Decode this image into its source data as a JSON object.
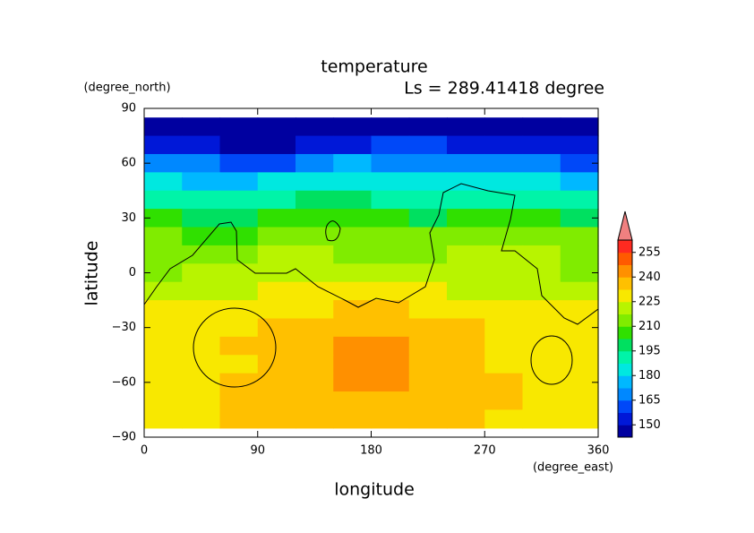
{
  "chart_data": {
    "type": "contour",
    "title": "temperature",
    "subtitle": "Ls = 289.41418 degree",
    "x_label": "longitude",
    "x_unit": "(degree_east)",
    "y_label": "latitude",
    "y_unit": "(degree_north)",
    "xlim": [
      0,
      360
    ],
    "xticks": [
      0,
      90,
      180,
      270,
      360
    ],
    "ylim": [
      -90,
      90
    ],
    "yticks": [
      {
        "value": -90,
        "label": "−90"
      },
      {
        "value": -60,
        "label": "−60"
      },
      {
        "value": -30,
        "label": "−30"
      },
      0,
      30,
      60,
      90
    ],
    "lon": [
      15,
      45,
      75,
      105,
      135,
      165,
      195,
      225,
      255,
      285,
      315,
      345
    ],
    "lat": [
      80,
      70,
      60,
      50,
      40,
      30,
      20,
      10,
      0,
      -10,
      -20,
      -30,
      -40,
      -50,
      -60,
      -70,
      -80
    ],
    "z": [
      [
        145,
        145,
        145,
        145,
        145,
        145,
        145,
        145,
        145,
        145,
        145,
        145
      ],
      [
        152,
        150,
        148,
        148,
        150,
        155,
        158,
        158,
        156,
        153,
        152,
        150
      ],
      [
        168,
        165,
        160,
        162,
        168,
        175,
        172,
        170,
        170,
        168,
        165,
        163
      ],
      [
        180,
        178,
        175,
        180,
        185,
        185,
        183,
        182,
        183,
        182,
        180,
        178
      ],
      [
        192,
        190,
        188,
        192,
        195,
        195,
        194,
        192,
        194,
        193,
        192,
        190
      ],
      [
        203,
        200,
        200,
        203,
        205,
        205,
        204,
        202,
        205,
        205,
        203,
        202
      ],
      [
        210,
        208,
        208,
        210,
        212,
        212,
        211,
        210,
        214,
        215,
        214,
        212
      ],
      [
        214,
        214,
        216,
        220,
        218,
        216,
        216,
        215,
        218,
        220,
        218,
        215
      ],
      [
        216,
        218,
        222,
        222,
        222,
        222,
        220,
        218,
        220,
        220,
        218,
        216
      ],
      [
        218,
        222,
        224,
        226,
        228,
        228,
        227,
        226,
        224,
        222,
        220,
        218
      ],
      [
        226,
        228,
        230,
        230,
        232,
        234,
        234,
        232,
        230,
        228,
        226,
        226
      ],
      [
        230,
        230,
        232,
        234,
        236,
        238,
        238,
        236,
        234,
        230,
        228,
        228
      ],
      [
        230,
        230,
        233,
        235,
        236,
        242,
        242,
        237,
        235,
        232,
        230,
        230
      ],
      [
        229,
        230,
        232,
        235,
        237,
        243,
        243,
        237,
        235,
        232,
        230,
        230
      ],
      [
        230,
        232,
        233,
        235,
        236,
        240,
        240,
        236,
        235,
        233,
        230,
        229
      ],
      [
        229,
        232,
        234,
        235,
        235,
        235,
        235,
        235,
        235,
        233,
        230,
        229
      ],
      [
        228,
        230,
        233,
        234,
        234,
        234,
        234,
        234,
        234,
        232,
        230,
        228
      ]
    ],
    "levels": [
      142.5,
      150,
      157.5,
      165,
      172.5,
      180,
      187.5,
      195,
      202.5,
      210,
      217.5,
      225,
      232.5,
      240,
      247.5,
      255,
      262.5
    ],
    "colors": [
      "#0000a0",
      "#0018d8",
      "#0048f8",
      "#0088ff",
      "#00b8ff",
      "#00e8e0",
      "#00f4a8",
      "#00e060",
      "#30e000",
      "#80ec00",
      "#b8f400",
      "#f8e800",
      "#ffc000",
      "#ff9000",
      "#ff5a00",
      "#ff2a20"
    ],
    "over_color": "#f08080",
    "cbar_ticks": [
      150,
      165,
      180,
      195,
      210,
      225,
      240,
      255
    ]
  }
}
